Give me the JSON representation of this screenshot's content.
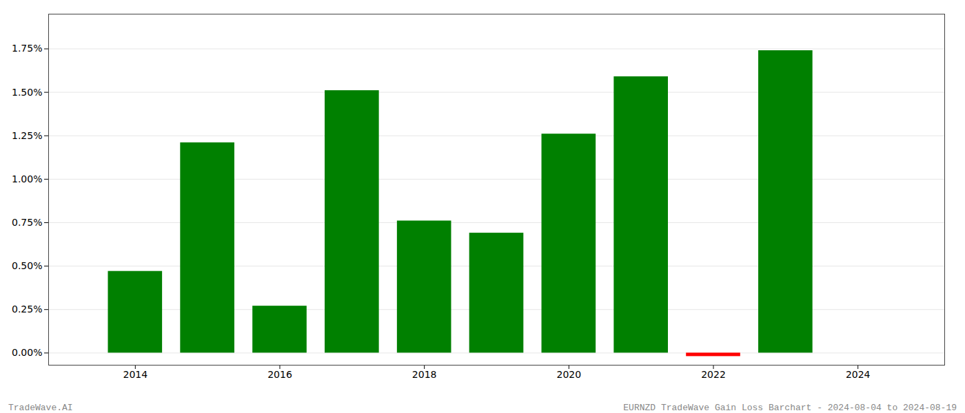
{
  "chart_data": {
    "type": "bar",
    "x": [
      2014,
      2015,
      2016,
      2017,
      2018,
      2019,
      2020,
      2021,
      2022,
      2023
    ],
    "values": [
      0.0047,
      0.0121,
      0.0027,
      0.0151,
      0.0076,
      0.0069,
      0.0126,
      0.0159,
      -0.0002,
      0.0174
    ],
    "colors": [
      "#008000",
      "#008000",
      "#008000",
      "#008000",
      "#008000",
      "#008000",
      "#008000",
      "#008000",
      "#ff0000",
      "#008000"
    ],
    "xlim": [
      2012.8,
      2025.2
    ],
    "xticks": [
      2014,
      2016,
      2018,
      2020,
      2022,
      2024
    ],
    "ylim": [
      -0.0007,
      0.0195
    ],
    "yticks": [
      {
        "value": 0.0,
        "label": "0.00%"
      },
      {
        "value": 0.0025,
        "label": "0.25%"
      },
      {
        "value": 0.005,
        "label": "0.50%"
      },
      {
        "value": 0.0075,
        "label": "0.75%"
      },
      {
        "value": 0.01,
        "label": "1.00%"
      },
      {
        "value": 0.0125,
        "label": "1.25%"
      },
      {
        "value": 0.015,
        "label": "1.50%"
      },
      {
        "value": 0.0175,
        "label": "1.75%"
      }
    ],
    "grid": true,
    "annotations": [
      "TradeWave.AI",
      "EURNZD TradeWave Gain Loss Barchart - 2024-08-04 to 2024-08-19"
    ]
  }
}
